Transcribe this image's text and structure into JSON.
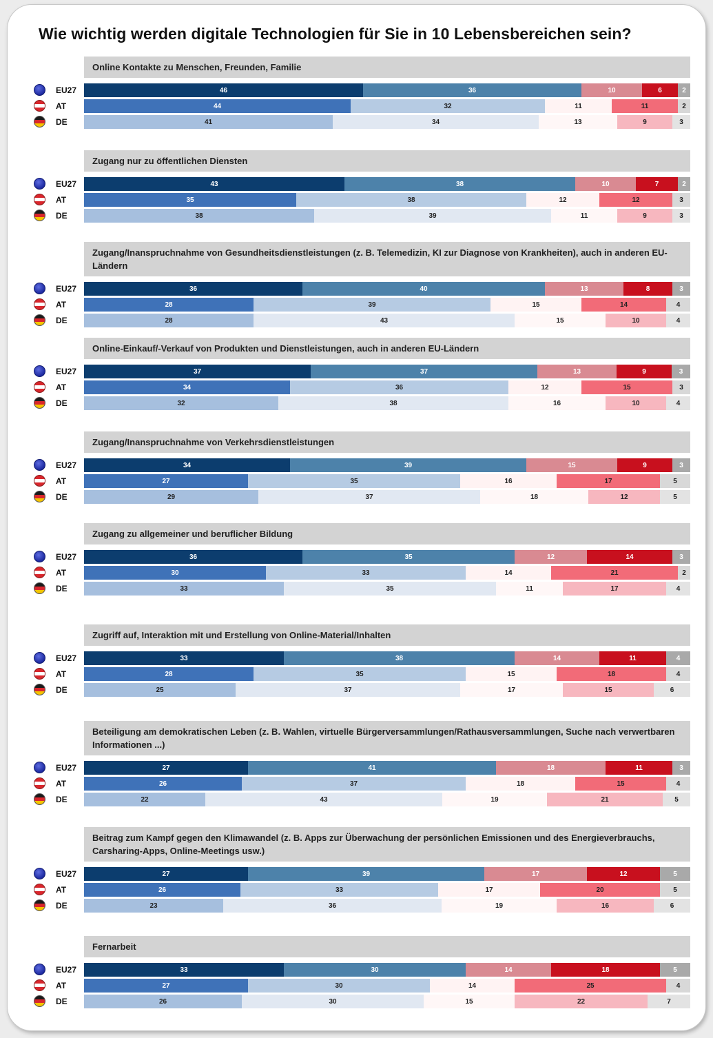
{
  "title": "Wie wichtig werden digitale Technologien für Sie in 10 Lebensbereichen sein?",
  "colors": {
    "EU27": [
      "#0c3d6e",
      "#4d82aa",
      "#d98a92",
      "#c8101e",
      "#a9a9a9"
    ],
    "AT": [
      "#3f72b8",
      "#b6cbe3",
      "#fff3f3",
      "#f26b78",
      "#d8d8d8"
    ],
    "DE": [
      "#a6bfde",
      "#e1e8f2",
      "#fff7f7",
      "#f7b7bf",
      "#e3e3e3"
    ]
  },
  "chart_data": {
    "type": "bar",
    "stacked": true,
    "orientation": "horizontal",
    "series_colors_by_row": true,
    "rows": [
      "EU27",
      "AT",
      "DE"
    ],
    "categories": [
      {
        "label": "Online Kontakte zu Menschen, Freunden, Familie",
        "values": {
          "EU27": [
            46,
            36,
            10,
            6,
            2
          ],
          "AT": [
            44,
            32,
            11,
            11,
            2
          ],
          "DE": [
            41,
            34,
            13,
            9,
            3
          ]
        }
      },
      {
        "label": "Zugang nur zu öffentlichen Diensten",
        "values": {
          "EU27": [
            43,
            38,
            10,
            7,
            2
          ],
          "AT": [
            35,
            38,
            12,
            12,
            3
          ],
          "DE": [
            38,
            39,
            11,
            9,
            3
          ]
        }
      },
      {
        "label": "Zugang/Inanspruchnahme von Gesundheitsdienstleistungen  (z. B. Telemedizin, KI zur Diagnose von Krankheiten), auch in anderen EU-Ländern",
        "values": {
          "EU27": [
            36,
            40,
            13,
            8,
            3
          ],
          "AT": [
            28,
            39,
            15,
            14,
            4
          ],
          "DE": [
            28,
            43,
            15,
            10,
            4
          ]
        }
      },
      {
        "label": "Online-Einkauf/-Verkauf von Produkten und Dienstleistungen, auch in anderen EU-Ländern",
        "values": {
          "EU27": [
            37,
            37,
            13,
            9,
            3
          ],
          "AT": [
            34,
            36,
            12,
            15,
            3
          ],
          "DE": [
            32,
            38,
            16,
            10,
            4
          ]
        }
      },
      {
        "label": "Zugang/Inanspruchnahme von Verkehrsdienstleistungen",
        "values": {
          "EU27": [
            34,
            39,
            15,
            9,
            3
          ],
          "AT": [
            27,
            35,
            16,
            17,
            5
          ],
          "DE": [
            29,
            37,
            18,
            12,
            5
          ]
        }
      },
      {
        "label": "Zugang zu allgemeiner und beruflicher Bildung",
        "values": {
          "EU27": [
            36,
            35,
            12,
            14,
            3
          ],
          "AT": [
            30,
            33,
            14,
            21,
            2
          ],
          "DE": [
            33,
            35,
            11,
            17,
            4
          ]
        }
      },
      {
        "label": "Zugriff auf, Interaktion mit und Erstellung von Online-Material/Inhalten",
        "values": {
          "EU27": [
            33,
            38,
            14,
            11,
            4
          ],
          "AT": [
            28,
            35,
            15,
            18,
            4
          ],
          "DE": [
            25,
            37,
            17,
            15,
            6
          ]
        }
      },
      {
        "label": "Beteiligung am demokratischen Leben (z. B. Wahlen, virtuelle Bürgerversammlungen/Rathausversammlungen, Suche nach verwertbaren Informationen ...)",
        "values": {
          "EU27": [
            27,
            41,
            18,
            11,
            3
          ],
          "AT": [
            26,
            37,
            18,
            15,
            4
          ],
          "DE": [
            22,
            43,
            19,
            21,
            5
          ]
        }
      },
      {
        "label": "Beitrag zum Kampf gegen den Klimawandel (z. B. Apps zur Überwachung der persönlichen Emissionen und des Energieverbrauchs, Carsharing-Apps, Online-Meetings usw.)",
        "values": {
          "EU27": [
            27,
            39,
            17,
            12,
            5
          ],
          "AT": [
            26,
            33,
            17,
            20,
            5
          ],
          "DE": [
            23,
            36,
            19,
            16,
            6
          ]
        }
      },
      {
        "label": "Fernarbeit",
        "values": {
          "EU27": [
            33,
            30,
            14,
            18,
            5
          ],
          "AT": [
            27,
            30,
            14,
            25,
            4
          ],
          "DE": [
            26,
            30,
            15,
            22,
            7
          ]
        }
      }
    ]
  }
}
